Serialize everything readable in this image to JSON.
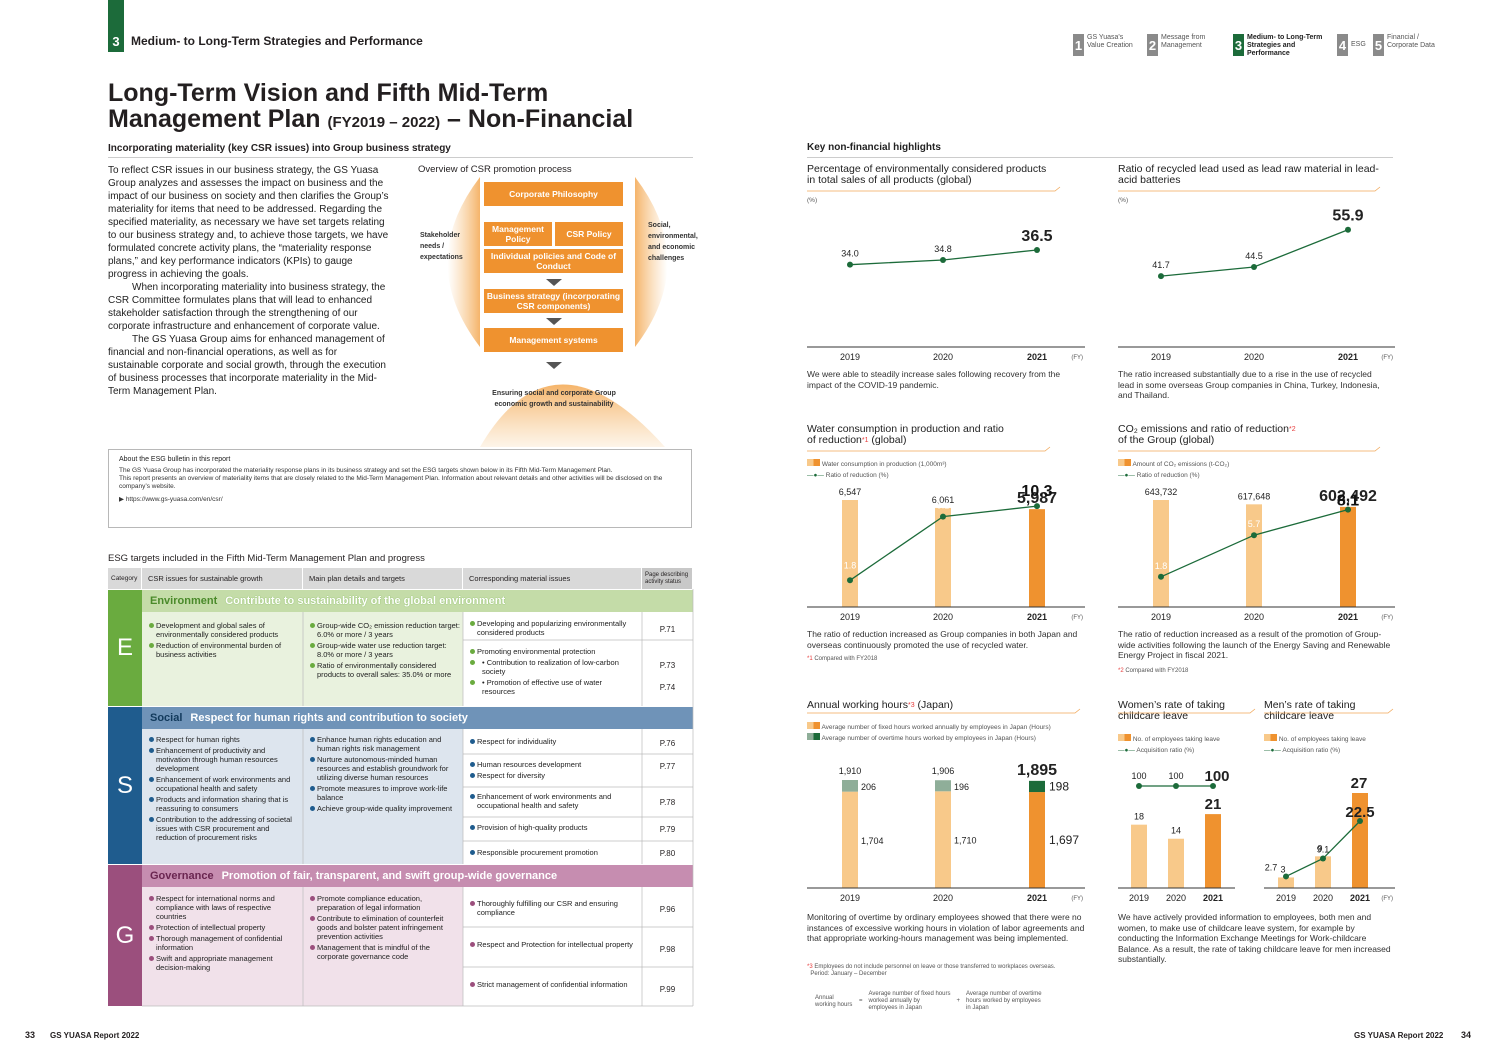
{
  "header": {
    "section_number": "3",
    "section_title": "Medium- to Long-Term Strategies and Performance",
    "nav": [
      {
        "n": "1",
        "label": "GS Yuasa's Value Creation"
      },
      {
        "n": "2",
        "label": "Message from Management"
      },
      {
        "n": "3",
        "label": "Medium- to Long-Term Strategies and Performance"
      },
      {
        "n": "4",
        "label": "ESG"
      },
      {
        "n": "5",
        "label": "Financial / Corporate Data"
      }
    ]
  },
  "title": {
    "line1": "Long-Term Vision and Fifth Mid-Term",
    "line2a": "Management Plan",
    "line2b": "(FY2019 – 2022)",
    "line2c": "– Non-Financial"
  },
  "left": {
    "subhead": "Incorporating materiality (key CSR issues) into Group business strategy",
    "paragraphs": [
      "To reflect CSR issues in our business strategy, the GS Yuasa Group analyzes and assesses the impact on business and the impact of our business on society and then clarifies the Group’s materiality for items that need to be addressed. Regarding the specified materiality, as necessary we have set targets relating to our business strategy and, to achieve those targets, we have formulated concrete activity plans, the “materiality response plans,” and key performance indicators (KPIs) to gauge progress in achieving the goals.",
      "When incorporating materiality into business strategy, the CSR Committee formulates plans that will lead to enhanced stakeholder satisfaction through the strengthening of our corporate infrastructure and enhancement of corporate value.",
      "The GS Yuasa Group aims for enhanced management of financial and non-financial operations, as well as for sustainable corporate and social growth, through the execution of business processes that incorporate materiality in the Mid-Term Management Plan."
    ],
    "process": {
      "title": "Overview of CSR promotion process",
      "philosophy": "Corporate Philosophy",
      "management_policy": "Management Policy",
      "csr_policy": "CSR Policy",
      "individual": "Individual policies and Code of Conduct",
      "strategy": "Business strategy (incorporating CSR components)",
      "systems": "Management systems",
      "left_label": "Stakeholder needs / expectations",
      "right_label": "Social, environmental, and economic challenges",
      "bottom_label": "Ensuring social and corporate Group economic growth and sustainability"
    },
    "info": {
      "heading": "About the ESG bulletin in this report",
      "text1": "The GS Yuasa Group has incorporated the materiality response plans in its business strategy and set the ESG targets shown below in its Fifth Mid-Term Management Plan.",
      "text2": "This report presents an overview of materiality items that are closely related to the Mid-Term Management Plan. Information about relevant details and other activities will be disclosed on the company’s website.",
      "url": "https://www.gs-yuasa.com/en/csr/"
    },
    "table": {
      "title": "ESG targets included in the Fifth Mid-Term Management Plan and progress",
      "headers": [
        "Category",
        "CSR issues for sustainable growth",
        "Main plan details and targets",
        "Corresponding material issues",
        "Page describing activity status"
      ],
      "E": {
        "letter": "E",
        "name": "Environment",
        "desc": "Contribute to sustainability of the global environment",
        "color": "#6aab3f",
        "issues": [
          "Development and global sales of environmentally considered products",
          "Reduction of environmental burden of business activities"
        ],
        "plans": [
          "Group-wide CO₂ emission reduction target: 6.0% or more / 3 years",
          "Group-wide water use reduction target: 8.0% or more / 3 years",
          "Ratio of environmentally considered products to overall sales: 35.0% or more"
        ],
        "materials": [
          "Developing and popularizing environmentally considered products",
          "Promoting environmental protection",
          "• Contribution to realization of low-carbon society",
          "• Promotion of effective use of water resources"
        ],
        "pages": [
          "P.71",
          "P.73",
          "P.74"
        ]
      },
      "S": {
        "letter": "S",
        "name": "Social",
        "desc": "Respect for human rights and contribution to society",
        "color": "#1f5c8e",
        "issues": [
          "Respect for human rights",
          "Enhancement of productivity and motivation through human resources development",
          "Enhancement of work environments and occupational health and safety",
          "Products and information sharing that is reassuring to consumers",
          "Contribution to the addressing of societal issues with CSR procurement and reduction of procurement risks"
        ],
        "plans": [
          "Enhance human rights education and human rights risk management",
          "Nurture autonomous-minded human resources and establish groundwork for utilizing diverse human resources",
          "Promote measures to improve work-life balance",
          "Achieve group-wide quality improvement"
        ],
        "materials": [
          "Respect for individuality",
          "Human resources development",
          "Respect for diversity",
          "Enhancement of work environments and occupational health and safety",
          "Provision of high-quality products",
          "Responsible procurement promotion"
        ],
        "pages": [
          "P.76",
          "P.77",
          "P.78",
          "P.79",
          "P.80"
        ]
      },
      "G": {
        "letter": "G",
        "name": "Governance",
        "desc": "Promotion of fair, transparent, and swift group-wide governance",
        "color": "#9b4f7d",
        "issues": [
          "Respect for international norms and compliance with laws of respective countries",
          "Protection of intellectual property",
          "Thorough management of confidential information",
          "Swift and appropriate management decision-making"
        ],
        "plans": [
          "Promote compliance education, preparation of legal information",
          "Contribute to elimination of counterfeit goods and bolster patent infringement prevention activities",
          "Management that is mindful of the corporate governance code"
        ],
        "materials": [
          "Thoroughly fulfilling our CSR and ensuring compliance",
          "Respect and Protection for intellectual property",
          "Strict management of confidential information"
        ],
        "pages": [
          "P.96",
          "P.98",
          "P.99"
        ]
      }
    }
  },
  "right": {
    "heading": "Key non-financial highlights",
    "k1": {
      "title": "Percentage of environmentally considered products in total sales of all products (global)",
      "unit": "(%)",
      "caption": "We were able to steadily increase sales following recovery from the impact of the COVID-19 pandemic."
    },
    "k2": {
      "title": "Ratio of recycled lead used as lead raw material in lead-acid batteries",
      "unit": "(%)",
      "caption": "The ratio increased substantially due to a rise in the use of recycled lead in some overseas Group companies in China, Turkey, Indonesia, and Thailand."
    },
    "k3": {
      "title1": "Water consumption in production and ratio",
      "title2": "of reduction",
      "title_mark": "*1",
      "title3": " (global)",
      "leg1": "Water consumption in production (1,000m³)",
      "leg2": "Ratio of reduction (%)",
      "caption": "The ratio of reduction increased as Group companies in both Japan and overseas continuously promoted the use of recycled water.",
      "note_mark": "*1",
      "note": " Compared with FY2018"
    },
    "k4": {
      "title1": "CO₂ emissions and ratio of reduction",
      "title_mark": "*2",
      "title2": "of the Group (global)",
      "leg1": "Amount of CO₂ emissions (t-CO₂)",
      "leg2": "Ratio of reduction (%)",
      "caption": "The ratio of reduction increased as a result of the promotion of Group-wide activities following the launch of the Energy Saving and Renewable Energy Project in fiscal 2021.",
      "note_mark": "*2",
      "note": " Compared with FY2018"
    },
    "k5": {
      "title1": "Annual working hours",
      "title_mark": "*3",
      "title2": " (Japan)",
      "leg1": "Average number of fixed hours worked annually by employees in Japan (Hours)",
      "leg2": "Average number of overtime hours worked by employees in Japan (Hours)",
      "caption": "Monitoring of overtime by ordinary employees showed that there were no instances of excessive working hours in violation of labor agreements and that appropriate working-hours management was being implemented.",
      "note_mark": "*3",
      "note": " Employees do not include personnel on leave or those transferred to workplaces overseas.",
      "period": "Period: January – December",
      "f1": "Annual working hours",
      "eq": "=",
      "f2": "Average number of fixed hours worked annually by employees in Japan",
      "plus": "+",
      "f3": "Average number of overtime hours worked by employees in Japan"
    },
    "k6": {
      "title": "Women’s rate of taking childcare leave",
      "leg1": "No. of employees taking leave",
      "leg2": "Acquisition ratio (%)"
    },
    "k7": {
      "title": "Men’s rate of taking childcare leave",
      "leg1": "No. of employees taking leave",
      "leg2": "Acquisition ratio (%)",
      "caption": "We have actively provided information to employees, both men and women, to make use of childcare leave system, for example by conducting the Information Exchange Meetings for Work-childcare Balance. As a result, the rate of taking childcare leave for men increased substantially."
    }
  },
  "chart_data": [
    {
      "id": "env_products",
      "type": "line",
      "x": [
        "2019",
        "2020",
        "2021"
      ],
      "xlabel": "(FY)",
      "ylabel": "(%)",
      "series": [
        {
          "values": [
            34.0,
            34.8,
            36.5
          ],
          "labels": [
            "34.0",
            "34.8",
            "36.5"
          ]
        }
      ],
      "color": "#1c6b3a"
    },
    {
      "id": "recycled_lead",
      "type": "line",
      "x": [
        "2019",
        "2020",
        "2021"
      ],
      "xlabel": "(FY)",
      "ylabel": "(%)",
      "series": [
        {
          "values": [
            41.7,
            44.5,
            55.9
          ],
          "labels": [
            "41.7",
            "44.5",
            "55.9"
          ]
        }
      ],
      "color": "#1c6b3a"
    },
    {
      "id": "water",
      "type": "bar+line",
      "x": [
        "2019",
        "2020",
        "2021"
      ],
      "xlabel": "(FY)",
      "bars": {
        "name": "Water consumption in production (1,000m³)",
        "values": [
          6547,
          6061,
          5987
        ],
        "labels": [
          "6,547",
          "6,061",
          "5,987"
        ]
      },
      "line": {
        "name": "Ratio of reduction (%)",
        "values": [
          1.8,
          9.1,
          10.3
        ],
        "labels": [
          "1.8",
          "9.1",
          "10.3"
        ]
      }
    },
    {
      "id": "co2",
      "type": "bar+line",
      "x": [
        "2019",
        "2020",
        "2021"
      ],
      "xlabel": "(FY)",
      "bars": {
        "name": "Amount of CO₂ emissions (t-CO₂)",
        "values": [
          643732,
          617648,
          602492
        ],
        "labels": [
          "643,732",
          "617,648",
          "602,492"
        ]
      },
      "line": {
        "name": "Ratio of reduction (%)",
        "values": [
          1.8,
          5.7,
          8.1
        ],
        "labels": [
          "1.8",
          "5.7",
          "8.1"
        ]
      }
    },
    {
      "id": "hours",
      "type": "stacked-bar",
      "x": [
        "2019",
        "2020",
        "2021"
      ],
      "xlabel": "(FY)",
      "totals": [
        "1,910",
        "1,906",
        "1,895"
      ],
      "series": [
        {
          "name": "Average number of fixed hours worked annually by employees in Japan (Hours)",
          "values": [
            1704,
            1710,
            1697
          ],
          "labels": [
            "1,704",
            "1,710",
            "1,697"
          ]
        },
        {
          "name": "Average number of overtime hours worked by employees in Japan (Hours)",
          "values": [
            206,
            196,
            198
          ],
          "labels": [
            "206",
            "196",
            "198"
          ]
        }
      ]
    },
    {
      "id": "women_leave",
      "type": "bar+line",
      "x": [
        "2019",
        "2020",
        "2021"
      ],
      "xlabel": "(FY)",
      "bars": {
        "name": "No. of employees taking leave",
        "values": [
          18,
          14,
          21
        ],
        "labels": [
          "18",
          "14",
          "21"
        ]
      },
      "line": {
        "name": "Acquisition ratio (%)",
        "values": [
          100,
          100,
          100
        ],
        "labels": [
          "100",
          "100",
          "100"
        ]
      }
    },
    {
      "id": "men_leave",
      "type": "bar+line",
      "x": [
        "2019",
        "2020",
        "2021"
      ],
      "xlabel": "(FY)",
      "bars": {
        "name": "No. of employees taking leave",
        "values": [
          3,
          9,
          27
        ],
        "labels": [
          "3",
          "9",
          "27"
        ]
      },
      "line": {
        "name": "Acquisition ratio (%)",
        "values": [
          2.7,
          9.1,
          22.5
        ],
        "labels": [
          "2.7",
          "9.1",
          "22.5"
        ]
      }
    }
  ],
  "footer": {
    "left_page": "33",
    "left_brand": "GS YUASA Report 2022",
    "right_brand": "GS YUASA Report 2022",
    "right_page": "34"
  }
}
